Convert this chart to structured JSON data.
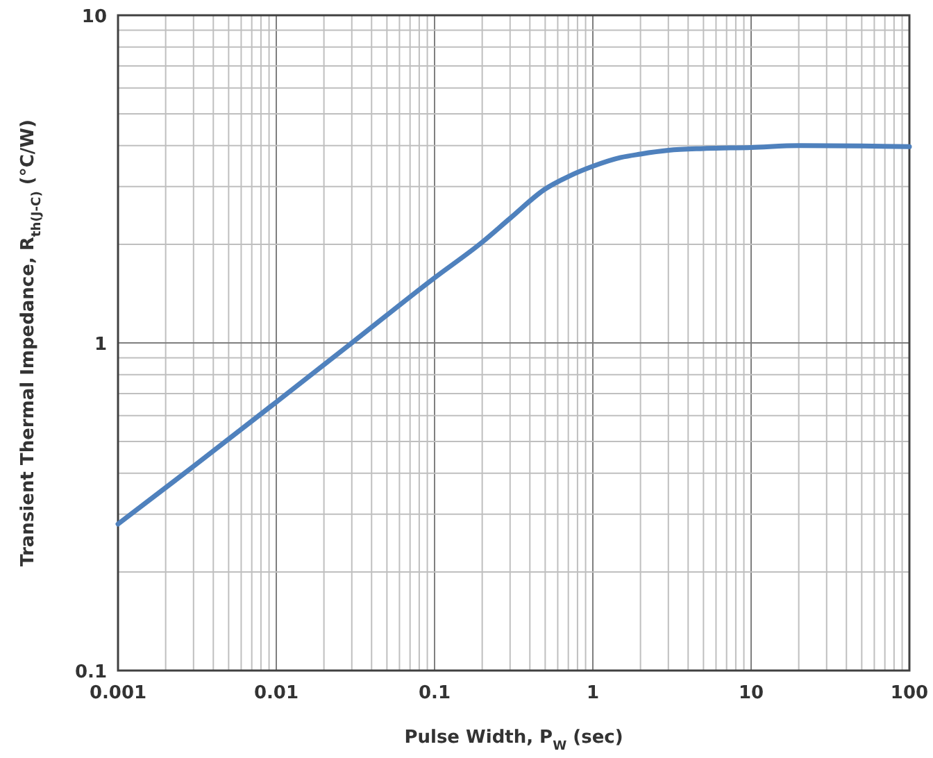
{
  "chart_data": {
    "type": "line",
    "xlabel": "Pulse Width, P$_{W}$ (sec)",
    "ylabel": "Transient Thermal Impedance, R$_{th(J-C)}$ (°C/W)",
    "log": "xy",
    "grid": true,
    "xlim": [
      0.001,
      100
    ],
    "ylim": [
      0.1,
      10
    ],
    "xticks": [
      0.001,
      0.01,
      0.1,
      1,
      10,
      100
    ],
    "yticks": [
      0.1,
      1,
      10
    ],
    "marker": "none",
    "line_style": "solid",
    "x": [
      0.001,
      0.003,
      0.01,
      0.03,
      0.1,
      0.2,
      0.3,
      0.5,
      0.7,
      1,
      1.5,
      2,
      3,
      5,
      10,
      20,
      50,
      100
    ],
    "series": [
      {
        "color": "#4f81bd",
        "values": [
          0.28,
          0.42,
          0.66,
          1.0,
          1.58,
          2.03,
          2.4,
          2.95,
          3.22,
          3.46,
          3.68,
          3.77,
          3.87,
          3.92,
          3.95,
          4.0,
          3.99,
          3.97
        ]
      }
    ]
  }
}
